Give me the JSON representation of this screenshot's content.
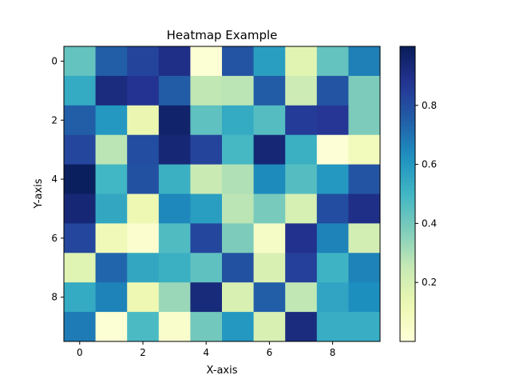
{
  "chart_data": {
    "type": "heatmap",
    "title": "Heatmap Example",
    "xlabel": "X-axis",
    "ylabel": "Y-axis",
    "x_ticks": [
      "0",
      "2",
      "4",
      "6",
      "8"
    ],
    "y_ticks": [
      "0",
      "2",
      "4",
      "6",
      "8"
    ],
    "colorbar_ticks": [
      "0.2",
      "0.4",
      "0.6",
      "0.8"
    ],
    "colormap": "YlGnBu",
    "value_range": [
      0.0,
      1.0
    ],
    "grid": false,
    "legend": "colorbar-right",
    "values": [
      [
        0.43,
        0.75,
        0.83,
        0.9,
        0.02,
        0.78,
        0.58,
        0.16,
        0.43,
        0.67
      ],
      [
        0.54,
        0.92,
        0.88,
        0.76,
        0.26,
        0.27,
        0.76,
        0.23,
        0.78,
        0.38
      ],
      [
        0.75,
        0.6,
        0.13,
        0.96,
        0.44,
        0.54,
        0.46,
        0.85,
        0.87,
        0.38
      ],
      [
        0.82,
        0.27,
        0.8,
        0.94,
        0.83,
        0.49,
        0.94,
        0.52,
        0.01,
        0.09
      ],
      [
        0.99,
        0.5,
        0.79,
        0.52,
        0.24,
        0.29,
        0.64,
        0.46,
        0.6,
        0.78
      ],
      [
        0.94,
        0.55,
        0.12,
        0.65,
        0.58,
        0.27,
        0.39,
        0.2,
        0.8,
        0.9
      ],
      [
        0.82,
        0.1,
        0.03,
        0.47,
        0.82,
        0.38,
        0.06,
        0.89,
        0.66,
        0.21
      ],
      [
        0.17,
        0.73,
        0.55,
        0.52,
        0.44,
        0.79,
        0.19,
        0.84,
        0.51,
        0.66
      ],
      [
        0.54,
        0.66,
        0.12,
        0.33,
        0.93,
        0.19,
        0.75,
        0.26,
        0.56,
        0.63
      ],
      [
        0.68,
        0.02,
        0.48,
        0.04,
        0.4,
        0.6,
        0.19,
        0.92,
        0.53,
        0.53
      ]
    ]
  }
}
